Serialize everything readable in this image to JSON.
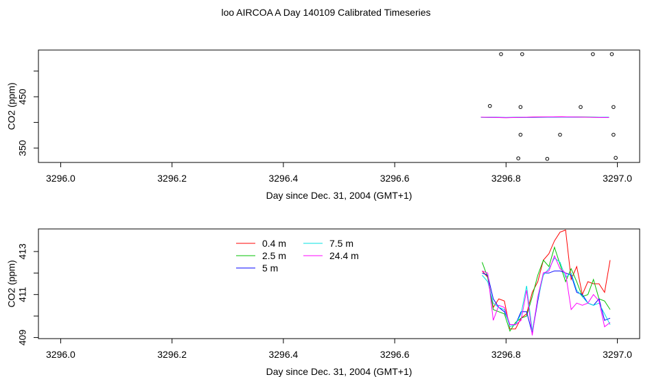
{
  "title": "loo AIRCOA A  Day 140109  Calibrated Timeseries",
  "chart_data": [
    {
      "type": "scatter",
      "xlabel": "Day since Dec. 31, 2004 (GMT+1)",
      "ylabel": "CO2 (ppm)",
      "xlim": [
        3295.96,
        3297.04
      ],
      "ylim": [
        322,
        541
      ],
      "xticks": [
        "3296.0",
        "3296.2",
        "3296.4",
        "3296.6",
        "3296.8",
        "3297.0"
      ],
      "yticks": [
        {
          "value": 350,
          "label": "350"
        },
        {
          "value": 400,
          "label": ""
        },
        {
          "value": 450,
          "label": "450"
        },
        {
          "value": 500,
          "label": ""
        }
      ],
      "points": [
        {
          "x": 3296.791,
          "y": 533
        },
        {
          "x": 3296.829,
          "y": 533
        },
        {
          "x": 3296.956,
          "y": 533
        },
        {
          "x": 3296.99,
          "y": 533
        },
        {
          "x": 3296.771,
          "y": 432
        },
        {
          "x": 3296.826,
          "y": 430
        },
        {
          "x": 3296.934,
          "y": 430
        },
        {
          "x": 3296.993,
          "y": 430
        },
        {
          "x": 3296.826,
          "y": 376
        },
        {
          "x": 3296.897,
          "y": 376
        },
        {
          "x": 3296.993,
          "y": 376
        },
        {
          "x": 3296.822,
          "y": 330
        },
        {
          "x": 3296.874,
          "y": 329
        },
        {
          "x": 3296.997,
          "y": 331
        }
      ],
      "series": [
        {
          "name": "red",
          "color": "#ff0000",
          "x": [
            3296.755,
            3296.8,
            3296.85,
            3296.9,
            3296.95,
            3296.985
          ],
          "y": [
            410,
            409.3,
            410.4,
            411,
            410.2,
            409.6
          ]
        },
        {
          "name": "green",
          "color": "#00c800",
          "x": [
            3296.755,
            3296.8,
            3296.85,
            3296.9,
            3296.95,
            3296.985
          ],
          "y": [
            410.2,
            409.5,
            410.1,
            410.7,
            410.4,
            409.8
          ]
        },
        {
          "name": "blue",
          "color": "#0000ff",
          "x": [
            3296.755,
            3296.8,
            3296.85,
            3296.9,
            3296.95,
            3296.985
          ],
          "y": [
            410.1,
            409.6,
            409.9,
            410.6,
            410.1,
            409.9
          ]
        },
        {
          "name": "cyan",
          "color": "#00e0e0",
          "x": [
            3296.755,
            3296.8,
            3296.85,
            3296.9,
            3296.95,
            3296.985
          ],
          "y": [
            409.9,
            409.4,
            410.2,
            410.5,
            410.3,
            410
          ]
        },
        {
          "name": "magenta",
          "color": "#ff00ff",
          "x": [
            3296.755,
            3296.8,
            3296.85,
            3296.9,
            3296.95,
            3296.985
          ],
          "y": [
            410.3,
            409.2,
            410.5,
            410.9,
            410,
            409.5
          ]
        }
      ]
    },
    {
      "type": "line",
      "xlabel": "Day since Dec. 31, 2004 (GMT+1)",
      "ylabel": "CO2 (ppm)",
      "xlim": [
        3295.96,
        3297.04
      ],
      "ylim": [
        408.95,
        414.05
      ],
      "xticks": [
        "3296.0",
        "3296.2",
        "3296.4",
        "3296.6",
        "3296.8",
        "3297.0"
      ],
      "yticks": [
        {
          "value": 409,
          "label": "409"
        },
        {
          "value": 410,
          "label": ""
        },
        {
          "value": 411,
          "label": "411"
        },
        {
          "value": 412,
          "label": ""
        },
        {
          "value": 413,
          "label": "413"
        }
      ],
      "legend": "top-center",
      "series": [
        {
          "name": "0.4 m",
          "color": "#ff0000",
          "x": [
            3296.757,
            3296.767,
            3296.777,
            3296.787,
            3296.797,
            3296.807,
            3296.817,
            3296.827,
            3296.837,
            3296.847,
            3296.857,
            3296.867,
            3296.877,
            3296.887,
            3296.897,
            3296.907,
            3296.917,
            3296.927,
            3296.937,
            3296.947,
            3296.957,
            3296.967,
            3296.977,
            3296.987
          ],
          "y": [
            412.1,
            411.8,
            410.4,
            410.8,
            410.7,
            409.4,
            409.4,
            409.9,
            410.1,
            411.1,
            411.6,
            412.6,
            412.9,
            413.5,
            413.9,
            414.0,
            411.7,
            412.3,
            411.0,
            411.6,
            411.5,
            411.5,
            411.1,
            412.6
          ]
        },
        {
          "name": "2.5 m",
          "color": "#00c000",
          "x": [
            3296.757,
            3296.767,
            3296.777,
            3296.787,
            3296.797,
            3296.807,
            3296.817,
            3296.827,
            3296.837,
            3296.847,
            3296.857,
            3296.867,
            3296.877,
            3296.887,
            3296.897,
            3296.907,
            3296.917,
            3296.927,
            3296.937,
            3296.947,
            3296.957,
            3296.967,
            3296.977,
            3296.987
          ],
          "y": [
            412.5,
            411.8,
            410.3,
            410.2,
            410.1,
            409.3,
            409.7,
            409.9,
            410.0,
            410.9,
            411.9,
            412.6,
            412.3,
            413.2,
            412.4,
            411.6,
            412.2,
            411.6,
            410.9,
            411.0,
            411.7,
            410.8,
            410.7,
            410.3
          ]
        },
        {
          "name": "5 m",
          "color": "#0000ff",
          "x": [
            3296.757,
            3296.767,
            3296.777,
            3296.787,
            3296.797,
            3296.807,
            3296.817,
            3296.827,
            3296.837,
            3296.847,
            3296.857,
            3296.867,
            3296.877,
            3296.887,
            3296.897,
            3296.907,
            3296.917,
            3296.927,
            3296.937,
            3296.947,
            3296.957,
            3296.967,
            3296.977,
            3296.987
          ],
          "y": [
            412.0,
            411.9,
            410.8,
            410.4,
            410.2,
            409.6,
            409.6,
            410.2,
            410.2,
            409.2,
            410.7,
            412.0,
            412.0,
            412.1,
            412.1,
            412.0,
            411.9,
            411.1,
            411.0,
            410.6,
            410.5,
            410.8,
            409.8,
            409.9
          ]
        },
        {
          "name": "7.5 m",
          "color": "#00e0e0",
          "x": [
            3296.757,
            3296.767,
            3296.777,
            3296.787,
            3296.797,
            3296.807,
            3296.817,
            3296.827,
            3296.837,
            3296.847,
            3296.857,
            3296.867,
            3296.877,
            3296.887,
            3296.897,
            3296.907,
            3296.917,
            3296.927,
            3296.937,
            3296.947,
            3296.957,
            3296.967,
            3296.977,
            3296.987
          ],
          "y": [
            411.9,
            411.6,
            410.6,
            410.4,
            410.3,
            409.5,
            409.6,
            410.1,
            411.4,
            409.3,
            410.8,
            411.9,
            412.2,
            412.7,
            412.5,
            411.8,
            412.0,
            411.2,
            410.9,
            410.6,
            410.5,
            410.6,
            410.1,
            409.6
          ]
        },
        {
          "name": "24.4 m",
          "color": "#ff00ff",
          "x": [
            3296.757,
            3296.767,
            3296.777,
            3296.787,
            3296.797,
            3296.807,
            3296.817,
            3296.827,
            3296.837,
            3296.847,
            3296.857,
            3296.867,
            3296.877,
            3296.887,
            3296.897,
            3296.907,
            3296.917,
            3296.927,
            3296.937,
            3296.947,
            3296.957,
            3296.967,
            3296.977,
            3296.987
          ],
          "y": [
            412.1,
            412.0,
            409.8,
            410.5,
            410.4,
            409.6,
            409.6,
            409.8,
            411.2,
            409.1,
            410.9,
            412.0,
            412.1,
            412.8,
            412.2,
            412.0,
            410.3,
            410.6,
            410.5,
            410.6,
            411.0,
            410.7,
            409.5,
            409.7
          ]
        }
      ]
    }
  ]
}
